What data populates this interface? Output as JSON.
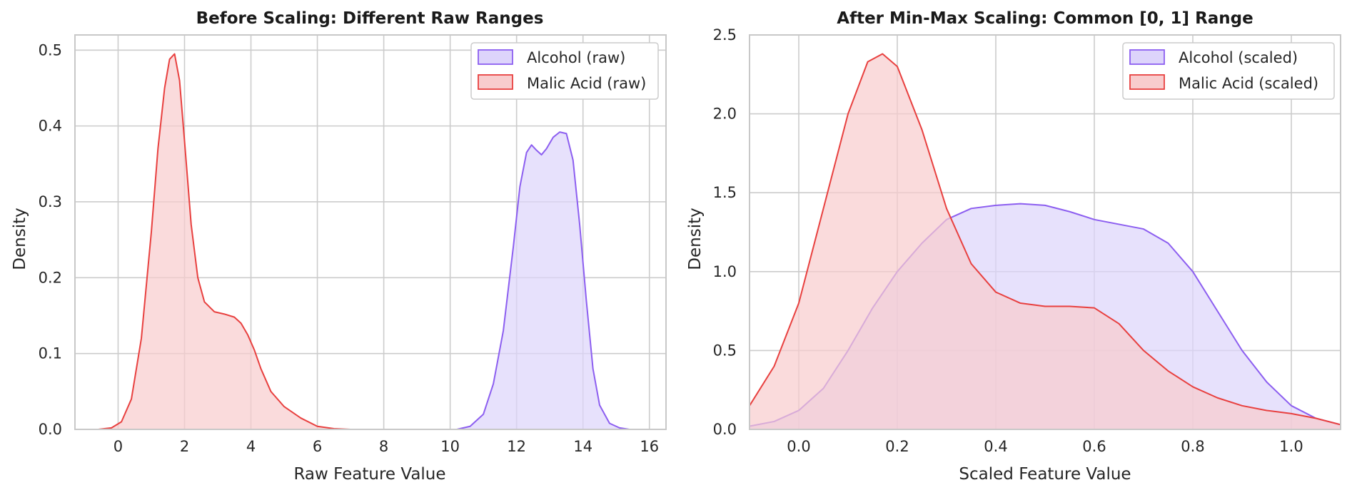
{
  "colors": {
    "alcohol": "#8c5ef0",
    "alcohol_fill": "#ddd4fb",
    "malic": "#e8403f",
    "malic_fill": "#f8cccd",
    "grid": "#cccccc",
    "frame": "#c8c8c8"
  },
  "chart_data": [
    {
      "type": "area",
      "title": "Before Scaling: Different Raw Ranges",
      "xlabel": "Raw Feature Value",
      "ylabel": "Density",
      "xlim": [
        -1.3,
        16.5
      ],
      "ylim": [
        0,
        0.52
      ],
      "xticks": [
        0,
        2,
        4,
        6,
        8,
        10,
        12,
        14,
        16
      ],
      "xtick_labels": [
        "0",
        "2",
        "4",
        "6",
        "8",
        "10",
        "12",
        "14",
        "16"
      ],
      "yticks": [
        0.0,
        0.1,
        0.2,
        0.3,
        0.4,
        0.5
      ],
      "ytick_labels": [
        "0.0",
        "0.1",
        "0.2",
        "0.3",
        "0.4",
        "0.5"
      ],
      "grid": true,
      "legend_position": "top-right",
      "series": [
        {
          "name": "Alcohol (raw)",
          "color_key": "alcohol",
          "x": [
            10.2,
            10.6,
            11.0,
            11.3,
            11.6,
            11.9,
            12.1,
            12.3,
            12.45,
            12.6,
            12.75,
            12.9,
            13.1,
            13.3,
            13.5,
            13.7,
            13.9,
            14.1,
            14.3,
            14.5,
            14.8,
            15.1,
            15.4,
            15.7
          ],
          "y": [
            0.0,
            0.004,
            0.02,
            0.06,
            0.13,
            0.24,
            0.32,
            0.365,
            0.375,
            0.368,
            0.362,
            0.37,
            0.385,
            0.392,
            0.39,
            0.355,
            0.27,
            0.17,
            0.08,
            0.032,
            0.008,
            0.002,
            0.0,
            0.0
          ]
        },
        {
          "name": "Malic Acid (raw)",
          "color_key": "malic",
          "x": [
            -0.6,
            -0.2,
            0.1,
            0.4,
            0.7,
            1.0,
            1.2,
            1.4,
            1.55,
            1.7,
            1.85,
            2.0,
            2.2,
            2.4,
            2.6,
            2.9,
            3.2,
            3.5,
            3.7,
            3.9,
            4.1,
            4.3,
            4.6,
            5.0,
            5.5,
            6.0,
            6.5,
            7.0
          ],
          "y": [
            0.0,
            0.002,
            0.01,
            0.04,
            0.12,
            0.26,
            0.37,
            0.45,
            0.488,
            0.495,
            0.46,
            0.38,
            0.27,
            0.2,
            0.168,
            0.155,
            0.152,
            0.148,
            0.14,
            0.125,
            0.105,
            0.08,
            0.05,
            0.03,
            0.015,
            0.004,
            0.001,
            0.0
          ]
        }
      ]
    },
    {
      "type": "area",
      "title": "After Min-Max Scaling: Common [0, 1] Range",
      "xlabel": "Scaled Feature Value",
      "ylabel": "Density",
      "xlim": [
        -0.1,
        1.1
      ],
      "ylim": [
        0,
        2.5
      ],
      "xticks": [
        0.0,
        0.2,
        0.4,
        0.6,
        0.8,
        1.0
      ],
      "xtick_labels": [
        "0.0",
        "0.2",
        "0.4",
        "0.6",
        "0.8",
        "1.0"
      ],
      "yticks": [
        0.0,
        0.5,
        1.0,
        1.5,
        2.0,
        2.5
      ],
      "ytick_labels": [
        "0.0",
        "0.5",
        "1.0",
        "1.5",
        "2.0",
        "2.5"
      ],
      "grid": true,
      "legend_position": "top-right",
      "series": [
        {
          "name": "Alcohol (scaled)",
          "color_key": "alcohol",
          "x": [
            -0.1,
            -0.05,
            0.0,
            0.05,
            0.1,
            0.15,
            0.2,
            0.25,
            0.3,
            0.35,
            0.4,
            0.45,
            0.5,
            0.55,
            0.6,
            0.65,
            0.7,
            0.75,
            0.8,
            0.85,
            0.9,
            0.95,
            1.0,
            1.05,
            1.1
          ],
          "y": [
            0.02,
            0.05,
            0.12,
            0.26,
            0.5,
            0.77,
            1.0,
            1.18,
            1.33,
            1.4,
            1.42,
            1.43,
            1.42,
            1.38,
            1.33,
            1.3,
            1.27,
            1.18,
            1.0,
            0.75,
            0.5,
            0.3,
            0.15,
            0.07,
            0.03
          ]
        },
        {
          "name": "Malic Acid (scaled)",
          "color_key": "malic",
          "x": [
            -0.1,
            -0.05,
            0.0,
            0.05,
            0.1,
            0.14,
            0.17,
            0.2,
            0.25,
            0.3,
            0.35,
            0.4,
            0.45,
            0.5,
            0.55,
            0.6,
            0.65,
            0.7,
            0.75,
            0.8,
            0.85,
            0.9,
            0.95,
            1.0,
            1.05,
            1.1
          ],
          "y": [
            0.15,
            0.4,
            0.8,
            1.4,
            2.0,
            2.33,
            2.38,
            2.3,
            1.9,
            1.4,
            1.05,
            0.87,
            0.8,
            0.78,
            0.78,
            0.77,
            0.67,
            0.5,
            0.37,
            0.27,
            0.2,
            0.15,
            0.12,
            0.1,
            0.07,
            0.03
          ]
        }
      ]
    }
  ]
}
